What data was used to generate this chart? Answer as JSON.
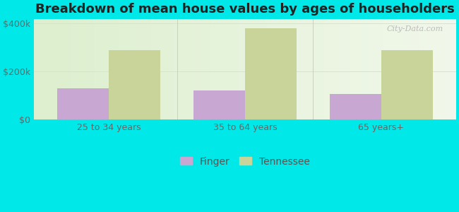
{
  "title": "Breakdown of mean house values by ages of householders",
  "categories": [
    "25 to 34 years",
    "35 to 64 years",
    "65 years+"
  ],
  "finger_values": [
    130000,
    120000,
    105000
  ],
  "tennessee_values": [
    290000,
    380000,
    290000
  ],
  "finger_color": "#c8a8d2",
  "tennessee_color": "#c8d49a",
  "background_color": "#00e8e8",
  "ylim": [
    0,
    420000
  ],
  "yticks": [
    0,
    200000,
    400000
  ],
  "ytick_labels": [
    "$0",
    "$200k",
    "$400k"
  ],
  "legend_labels": [
    "Finger",
    "Tennessee"
  ],
  "bar_width": 0.38,
  "title_fontsize": 13,
  "tick_fontsize": 9,
  "legend_fontsize": 10,
  "watermark": "City-Data.com"
}
